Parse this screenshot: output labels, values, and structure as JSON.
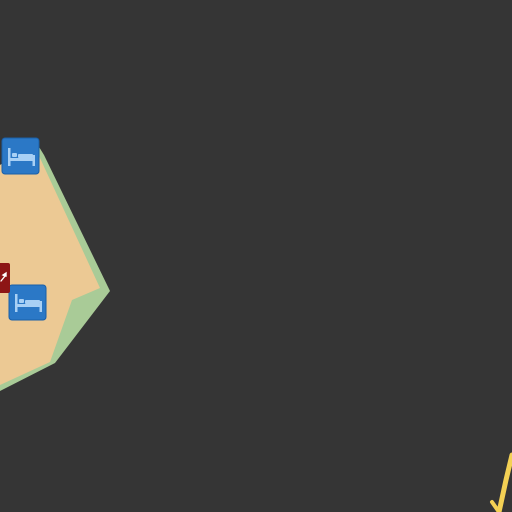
{
  "map": {
    "background_color": "#353535",
    "colors": {
      "green_area": "#a9cb97",
      "land_area": "#ecc994",
      "road": "#f4d154",
      "hotel_marker_bg": "#2b78c6",
      "hotel_marker_border": "#1a5fa8",
      "hotel_glyph": "#a8d0f5",
      "poi_marker_bg": "#8d1515",
      "poi_glyph": "#ffffff"
    },
    "markers": [
      {
        "kind": "hotel",
        "icon": "bed-icon"
      },
      {
        "kind": "hotel",
        "icon": "bed-icon"
      },
      {
        "kind": "point-of-interest",
        "icon": "pin-icon"
      }
    ]
  }
}
